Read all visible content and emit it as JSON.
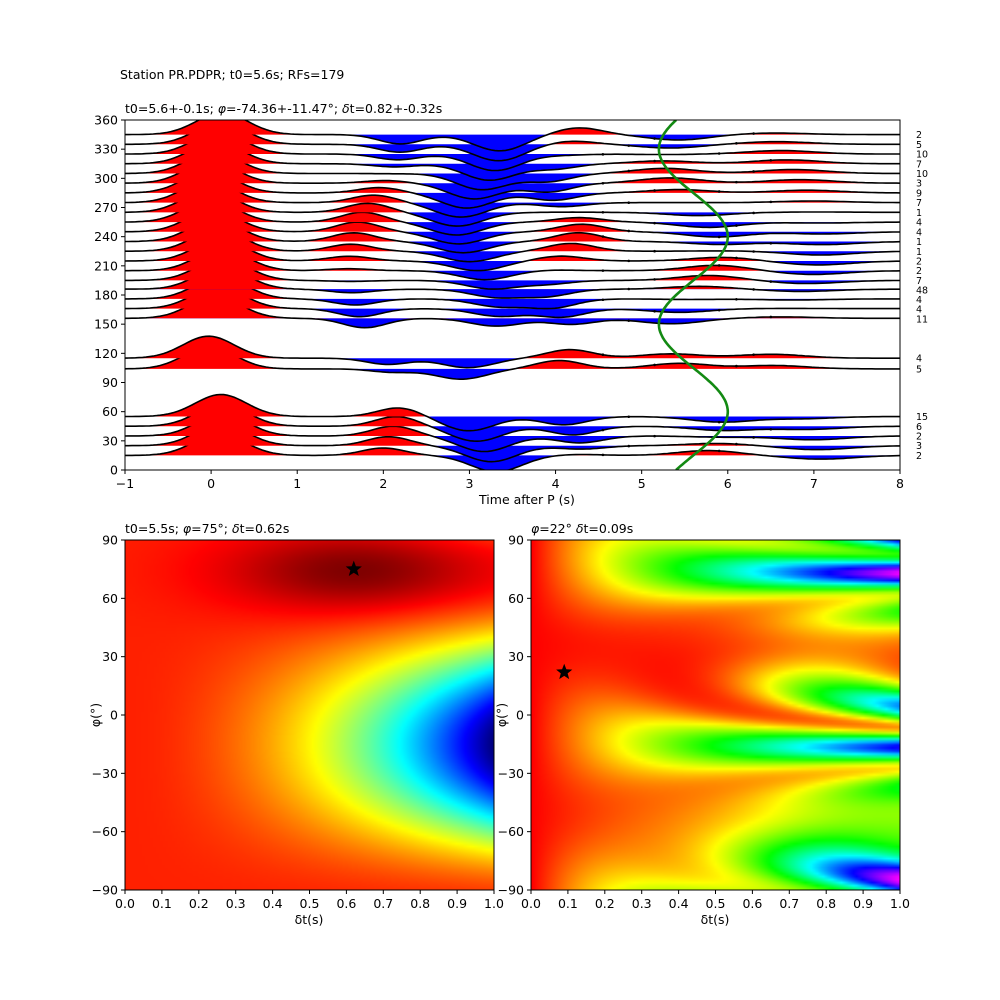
{
  "figure": {
    "suptitle": "Station PR.PDPR; t0=5.6s; RFs=179"
  },
  "chart_data": [
    {
      "type": "wiggle",
      "title_parts": [
        "t0=5.6+-0.1s; ",
        "φ",
        "=-74.36+-11.47°; ",
        "δ",
        "t=0.82+-0.32s"
      ],
      "xlabel": "Time after P (s)",
      "xlim": [
        -1,
        8
      ],
      "ylim": [
        0,
        360
      ],
      "xticks": [
        -1,
        0,
        1,
        2,
        3,
        4,
        5,
        6,
        7,
        8
      ],
      "yticks": [
        0,
        30,
        60,
        90,
        120,
        150,
        180,
        210,
        240,
        270,
        300,
        330,
        360
      ],
      "wiggle_scale": 1,
      "fill_positive": "#ff0000",
      "fill_negative": "#0000ff",
      "baz": [
        15,
        25,
        35,
        45,
        55,
        104,
        115,
        156,
        166,
        176,
        186,
        195,
        205,
        215,
        225,
        235,
        245,
        255,
        265,
        275,
        285,
        295,
        305,
        315,
        325,
        335,
        345
      ],
      "counts": [
        "2",
        "3",
        "2",
        "6",
        "15",
        "5",
        "4",
        "11",
        "4",
        "4",
        "48",
        "7",
        "2",
        "2",
        "1",
        "1",
        "4",
        "4",
        "1",
        "7",
        "9",
        "3",
        "10",
        "7",
        "10",
        "5",
        "2"
      ],
      "t0_curve_color": "#138a13",
      "t0_curve": {
        "mean": 5.6,
        "amplitude": 0.4,
        "phase_deg": -60
      }
    },
    {
      "type": "heatmap",
      "title_parts": [
        "t0=5.5s; ",
        "φ",
        "=75°; ",
        "δ",
        "t=0.62s"
      ],
      "xlabel": "δt(s)",
      "ylabel": "φ(°)",
      "xlim": [
        0,
        1
      ],
      "ylim": [
        -90,
        90
      ],
      "xticks": [
        0.0,
        0.1,
        0.2,
        0.3,
        0.4,
        0.5,
        0.6,
        0.7,
        0.8,
        0.9,
        1.0
      ],
      "yticks": [
        -90,
        -60,
        -30,
        0,
        30,
        60,
        90
      ],
      "colormap": "jet",
      "best": {
        "dt": 0.62,
        "phi": 75
      }
    },
    {
      "type": "heatmap",
      "title_parts": [
        "φ",
        "=22° ",
        "δ",
        "t=0.09s"
      ],
      "xlabel": "δt(s)",
      "ylabel": "φ(°)",
      "xlim": [
        0,
        1
      ],
      "ylim": [
        -90,
        90
      ],
      "xticks": [
        0.0,
        0.1,
        0.2,
        0.3,
        0.4,
        0.5,
        0.6,
        0.7,
        0.8,
        0.9,
        1.0
      ],
      "yticks": [
        -90,
        -60,
        -30,
        0,
        30,
        60,
        90
      ],
      "colormap": "hsv",
      "best": {
        "dt": 0.09,
        "phi": 22
      }
    }
  ]
}
